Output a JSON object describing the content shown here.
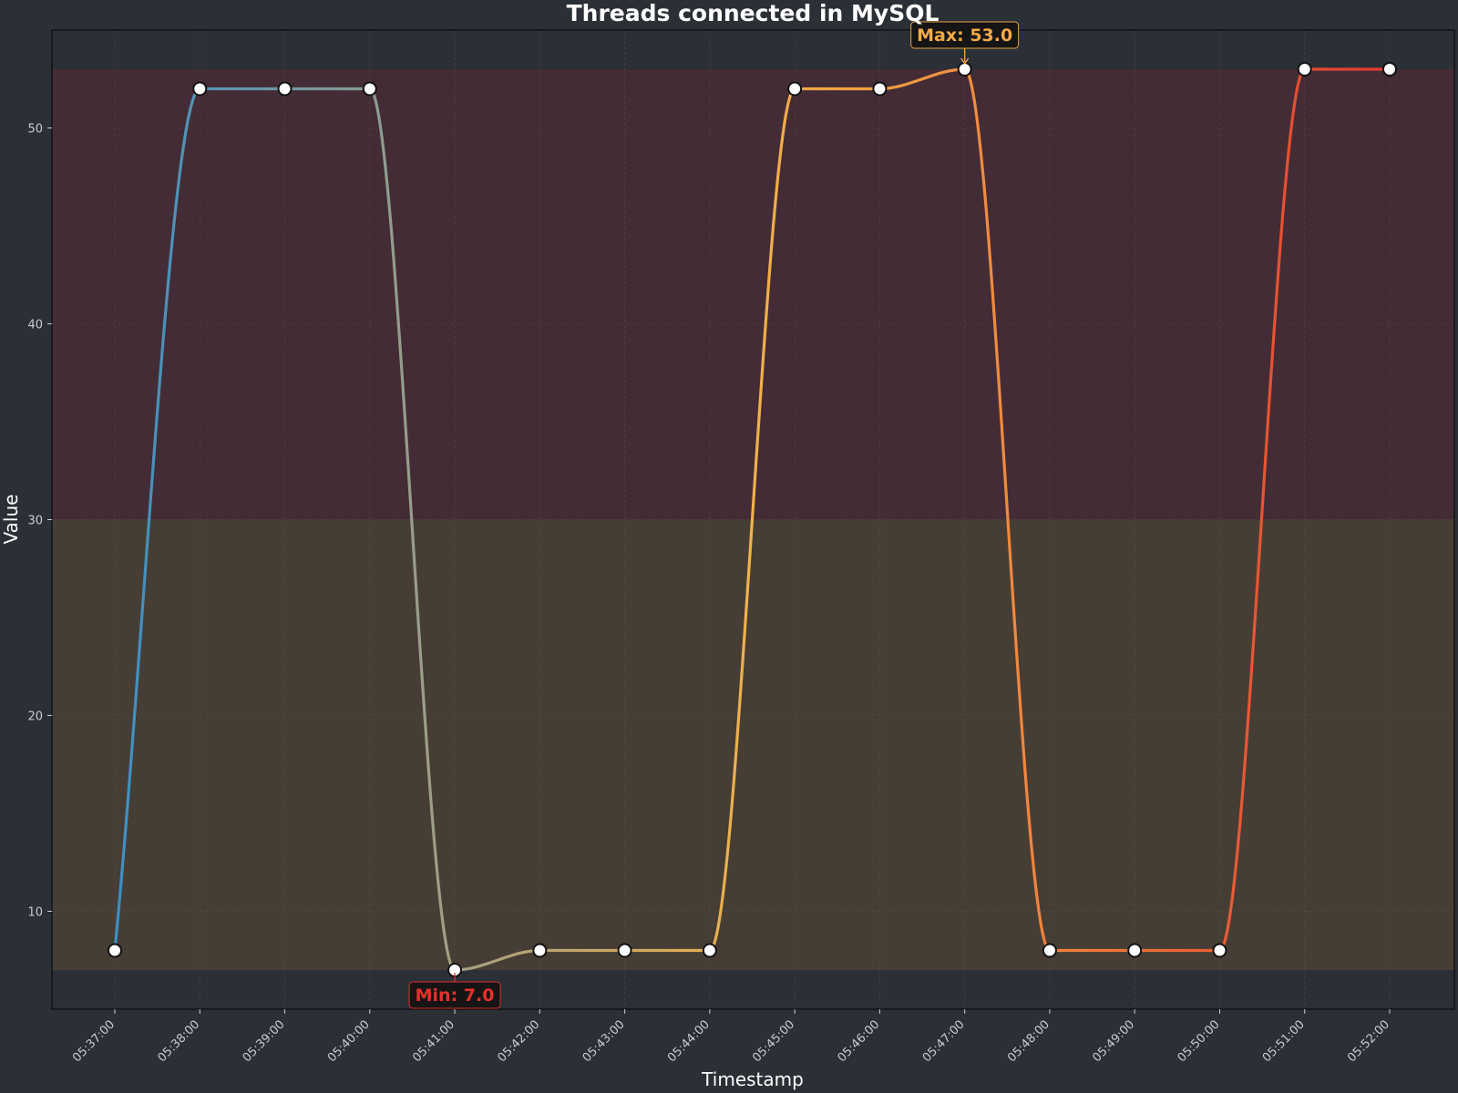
{
  "chart_data": {
    "type": "line",
    "title": "Threads connected in MySQL",
    "xlabel": "Timestamp",
    "ylabel": "Value",
    "x": [
      "05:37:00",
      "05:38:00",
      "05:39:00",
      "05:40:00",
      "05:41:00",
      "05:42:00",
      "05:43:00",
      "05:44:00",
      "05:45:00",
      "05:46:00",
      "05:47:00",
      "05:48:00",
      "05:49:00",
      "05:50:00",
      "05:51:00",
      "05:52:00"
    ],
    "values": [
      8,
      52,
      52,
      52,
      7,
      8,
      8,
      8,
      52,
      52,
      53,
      8,
      8,
      8,
      53,
      53
    ],
    "ylim": [
      5,
      55
    ],
    "yticks": [
      10,
      20,
      30,
      40,
      50
    ],
    "grid": true,
    "bands": [
      {
        "from": 7,
        "to": 30,
        "color": "#463d35"
      },
      {
        "from": 30,
        "to": 53,
        "color": "#432c35"
      }
    ],
    "gradient_colors": [
      "#3b8fc4",
      "#9e9e86",
      "#f0b14a",
      "#f07f3a",
      "#e0392f"
    ],
    "annotations": {
      "max": {
        "text": "Max: 53.0",
        "x": "05:47:00",
        "y": 53,
        "color": "#f5a948"
      },
      "min": {
        "text": "Min: 7.0",
        "x": "05:41:00",
        "y": 7,
        "color": "#e8302a"
      }
    }
  }
}
